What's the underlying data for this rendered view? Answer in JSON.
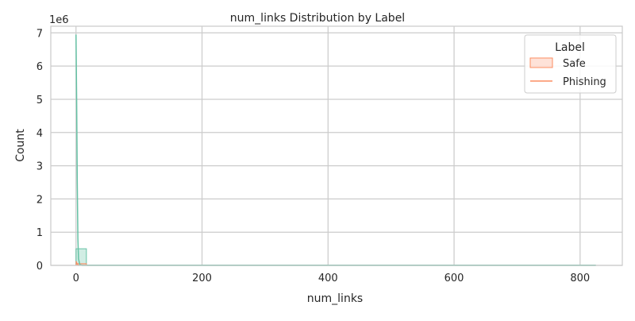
{
  "chart_data": {
    "type": "histogram",
    "title": "num_links Distribution by Label",
    "xlabel": "num_links",
    "ylabel": "Count",
    "y_offset_text": "1e6",
    "y_multiplier": 1000000,
    "xlim": [
      -40,
      867
    ],
    "ylim": [
      0,
      7.2
    ],
    "x_ticks": [
      0,
      200,
      400,
      600,
      800
    ],
    "x_tick_labels": [
      "0",
      "200",
      "400",
      "600",
      "800"
    ],
    "y_ticks": [
      0,
      1,
      2,
      3,
      4,
      5,
      6,
      7
    ],
    "y_tick_labels": [
      "0",
      "1",
      "2",
      "3",
      "4",
      "5",
      "6",
      "7"
    ],
    "grid": true,
    "legend": {
      "title": "Label",
      "placement": "top-right",
      "entries": [
        {
          "name": "Safe",
          "marker": "patch",
          "color": "#fc8d62"
        },
        {
          "name": "Phishing",
          "marker": "line",
          "color": "#fc8d62"
        }
      ]
    },
    "series": [
      {
        "color": "#66c2a5",
        "bins": [
          {
            "x0": 0,
            "x1": 16.5,
            "count": 0.5
          },
          {
            "x0": 16.5,
            "x1": 825,
            "count": 0.0
          }
        ],
        "kde": [
          [
            0,
            6.95
          ],
          [
            1,
            5.0
          ],
          [
            2,
            2.5
          ],
          [
            3,
            0.8
          ],
          [
            4,
            0.2
          ],
          [
            6,
            0.02
          ],
          [
            10,
            0.0
          ],
          [
            825,
            0.0
          ]
        ]
      },
      {
        "color": "#fc8d62",
        "bins": [
          {
            "x0": 0,
            "x1": 16.5,
            "count": 0.05
          }
        ],
        "kde": [
          [
            0,
            0.12
          ],
          [
            1,
            0.08
          ],
          [
            2,
            0.03
          ],
          [
            3,
            0.01
          ],
          [
            5,
            0.0
          ]
        ]
      }
    ]
  }
}
